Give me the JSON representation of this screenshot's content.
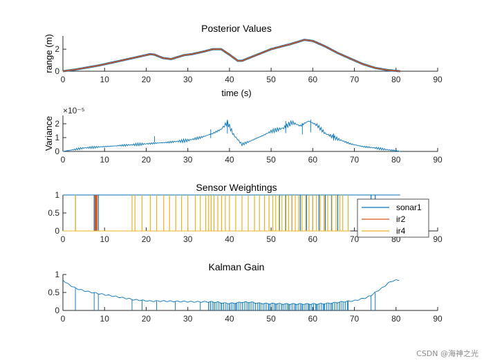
{
  "watermark": "CSDN @海神之光",
  "colors": {
    "blue": "#0072BD",
    "red": "#D95319",
    "orange": "#EDB120",
    "axis": "#262626"
  },
  "chart_data": [
    {
      "id": "posterior",
      "type": "line",
      "title": "Posterior Values",
      "xlabel": "time (s)",
      "ylabel": "range (m)",
      "xlim": [
        0,
        90
      ],
      "ylim": [
        0,
        3.2
      ],
      "xticks": [
        0,
        10,
        20,
        30,
        40,
        50,
        60,
        70,
        80,
        90
      ],
      "yticks": [
        0,
        2
      ],
      "ytick_labels": [
        "0",
        "2"
      ],
      "series": [
        {
          "name": "range estimate",
          "color": "#D95319",
          "x": [
            0,
            3,
            6,
            9,
            12,
            15,
            18,
            21,
            22,
            24,
            26,
            29,
            31,
            34,
            36,
            38,
            40,
            42,
            43,
            45,
            48,
            50,
            53,
            55,
            58,
            60,
            63,
            66,
            69,
            72,
            75,
            78,
            81
          ],
          "y": [
            0,
            0.15,
            0.35,
            0.55,
            0.8,
            1.05,
            1.3,
            1.55,
            1.5,
            1.2,
            1.1,
            1.45,
            1.55,
            1.8,
            2.0,
            2.0,
            1.5,
            0.95,
            0.95,
            1.25,
            1.7,
            2.0,
            2.3,
            2.5,
            2.85,
            2.75,
            2.25,
            1.65,
            1.15,
            0.65,
            0.3,
            0.1,
            0.0
          ]
        }
      ]
    },
    {
      "id": "variance",
      "type": "line",
      "title": "",
      "xlabel": "",
      "ylabel": "Variance",
      "exponent": "×10⁻⁵",
      "xlim": [
        0,
        90
      ],
      "ylim": [
        0,
        2.6
      ],
      "xticks": [
        0,
        10,
        20,
        30,
        40,
        50,
        60,
        70,
        80,
        90
      ],
      "yticks": [
        0,
        1,
        2
      ],
      "ytick_labels": [
        "0",
        "1",
        "2"
      ],
      "series": [
        {
          "name": "variance",
          "color": "#0072BD",
          "x": [
            0,
            5,
            10,
            15,
            20,
            25,
            30,
            33,
            36,
            38,
            39.5,
            41,
            43,
            45,
            48,
            50,
            53,
            55,
            57,
            59,
            61,
            63,
            66,
            69,
            72,
            75,
            78,
            80,
            81
          ],
          "y": [
            0,
            0.25,
            0.35,
            0.45,
            0.55,
            0.65,
            0.8,
            1.0,
            1.3,
            1.6,
            2.1,
            1.2,
            0.5,
            0.75,
            1.15,
            1.45,
            1.7,
            2.1,
            1.85,
            2.2,
            1.9,
            1.3,
            0.9,
            0.55,
            0.35,
            0.25,
            0.12,
            0.05,
            0.0
          ],
          "peaks": [
            {
              "x": 22,
              "y": 1.1
            },
            {
              "x": 35.5,
              "y": 1.6
            },
            {
              "x": 39.5,
              "y": 2.15
            },
            {
              "x": 53.5,
              "y": 2.2
            },
            {
              "x": 57.5,
              "y": 2.05
            },
            {
              "x": 59.5,
              "y": 2.3
            },
            {
              "x": 65,
              "y": 1.3
            }
          ]
        }
      ]
    },
    {
      "id": "weightings",
      "type": "line",
      "title": "Sensor Weightings",
      "xlabel": "",
      "ylabel": "",
      "xlim": [
        0,
        90
      ],
      "ylim": [
        0,
        1
      ],
      "xticks": [
        0,
        10,
        20,
        30,
        40,
        50,
        60,
        70,
        80,
        90
      ],
      "yticks": [
        0,
        0.5,
        1
      ],
      "ytick_labels": [
        "0",
        "0.5",
        "1"
      ],
      "legend": {
        "position": "right",
        "entries": [
          "sonar1",
          "ir2",
          "ir4"
        ]
      },
      "series": [
        {
          "name": "sonar1",
          "color": "#0072BD",
          "baseline": 1,
          "spike_to": 0,
          "x_end": 81,
          "spikes": [
            3,
            7.5,
            8.5,
            52,
            53.5,
            55,
            57,
            58.5,
            60,
            61.5,
            63,
            64.5,
            66,
            74,
            75
          ]
        },
        {
          "name": "ir2",
          "color": "#D95319",
          "baseline": 0,
          "spike_to": 1,
          "x_end": 67,
          "spikes": [
            7.8,
            8.1
          ]
        },
        {
          "name": "ir4",
          "color": "#EDB120",
          "baseline": 0,
          "spike_to": 1,
          "x_end": 69,
          "spikes": [
            3,
            16.6,
            17.3,
            19,
            21,
            22.5,
            24.2,
            25.6,
            27.1,
            28.5,
            30,
            31.8,
            33,
            34.3,
            35,
            35.6,
            36.3,
            37.2,
            38.1,
            39,
            40,
            41.5,
            43,
            44.5,
            46,
            47.2,
            48.4,
            49.5,
            50.4,
            51.1,
            51.9,
            52.6,
            53.4,
            54.2,
            55,
            55.8,
            56.6,
            57.4,
            58.3,
            59.1,
            60,
            60.9,
            61.8,
            62.7,
            63.6,
            64.6,
            65.6,
            66.5,
            67.2,
            68.5
          ]
        }
      ]
    },
    {
      "id": "kalman",
      "type": "line",
      "title": "Kalman Gain",
      "xlabel": "",
      "ylabel": "",
      "xlim": [
        0,
        90
      ],
      "ylim": [
        0,
        1
      ],
      "xticks": [
        0,
        10,
        20,
        30,
        40,
        50,
        60,
        70,
        80,
        90
      ],
      "yticks": [
        0,
        0.5,
        1
      ],
      "ytick_labels": [
        "0",
        "0.5",
        "1"
      ],
      "series": [
        {
          "name": "kalman gain",
          "color": "#0072BD",
          "x": [
            0,
            1,
            3,
            5,
            7,
            9,
            11,
            13,
            15,
            17,
            19,
            21,
            23,
            25,
            27,
            29,
            31,
            33,
            35,
            37,
            39,
            41,
            43,
            45,
            47,
            49,
            51,
            53,
            55,
            57,
            59,
            61,
            63,
            65,
            67,
            69,
            70,
            71,
            72,
            73,
            74,
            75,
            76,
            77,
            78,
            79,
            80,
            81
          ],
          "y": [
            0.85,
            0.75,
            0.62,
            0.55,
            0.5,
            0.46,
            0.42,
            0.38,
            0.34,
            0.3,
            0.28,
            0.26,
            0.26,
            0.26,
            0.25,
            0.25,
            0.24,
            0.24,
            0.24,
            0.23,
            0.2,
            0.2,
            0.23,
            0.23,
            0.2,
            0.19,
            0.19,
            0.18,
            0.18,
            0.18,
            0.18,
            0.18,
            0.19,
            0.21,
            0.24,
            0.26,
            0.27,
            0.3,
            0.33,
            0.36,
            0.42,
            0.5,
            0.58,
            0.65,
            0.75,
            0.82,
            0.84,
            0.85
          ],
          "drops": [
            3,
            7.5,
            8.5,
            16.6,
            19,
            22.5,
            27,
            33,
            35,
            36.3,
            38.1,
            40,
            41.5,
            44.5,
            47.2,
            49.5,
            51.1,
            52.6,
            54.2,
            55.8,
            57.4,
            59.1,
            60.9,
            62.7,
            64.6,
            66.5,
            68.5,
            74,
            75
          ],
          "drops_dense_from": 35,
          "drops_dense_to": 68.5
        }
      ]
    }
  ]
}
